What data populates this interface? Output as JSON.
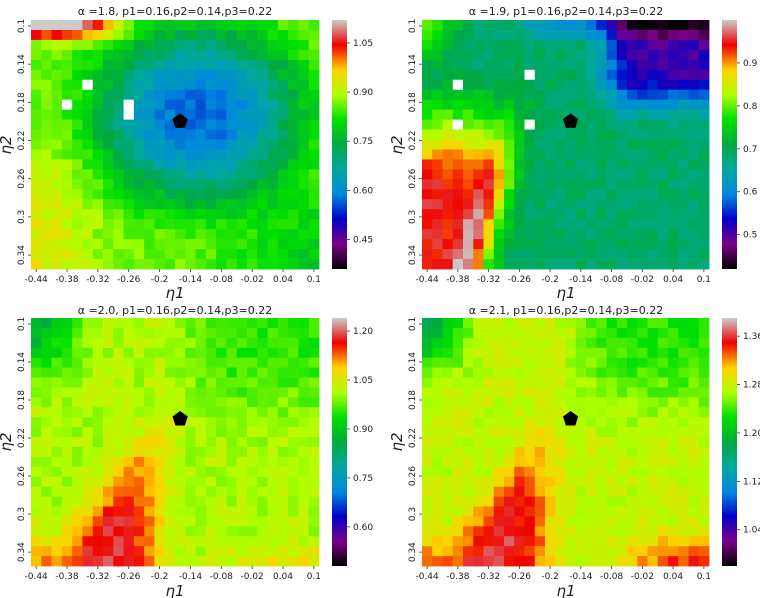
{
  "chart_data": [
    {
      "type": "heatmap",
      "title": "α =1.8, p1=0.16,p2=0.14,p3=0.22",
      "xlabel": "η1",
      "ylabel": "η2",
      "x_ticks": [
        "-0.44",
        "-0.38",
        "-0.32",
        "-0.26",
        "-0.2",
        "-0.14",
        "-0.08",
        "-0.02",
        "0.04",
        "0.1"
      ],
      "y_ticks": [
        "0.1",
        "0.14",
        "0.18",
        "0.22",
        "0.26",
        "0.3",
        "0.34"
      ],
      "grid": [
        28,
        25
      ],
      "x_range": [
        -0.44,
        0.1
      ],
      "y_range": [
        0.1,
        0.34
      ],
      "colorbar_ticks": [
        "1.05",
        "0.90",
        "0.75",
        "0.60",
        "0.45"
      ],
      "value_range": [
        0.36,
        1.12
      ],
      "marker": {
        "shape": "pentagon",
        "x": -0.16,
        "y": 0.2
      },
      "colormap": "nipy_spectral"
    },
    {
      "type": "heatmap",
      "title": "α =1.9, p1=0.16,p2=0.14,p3=0.22",
      "xlabel": "η1",
      "ylabel": "η2",
      "x_ticks": [
        "-0.44",
        "-0.38",
        "-0.32",
        "-0.26",
        "-0.2",
        "-0.14",
        "-0.08",
        "-0.02",
        "0.04",
        "0.1"
      ],
      "y_ticks": [
        "0.1",
        "0.14",
        "0.18",
        "0.22",
        "0.26",
        "0.3",
        "0.34"
      ],
      "grid": [
        28,
        25
      ],
      "x_range": [
        -0.44,
        0.1
      ],
      "y_range": [
        0.1,
        0.34
      ],
      "colorbar_ticks": [
        "0.9",
        "0.8",
        "0.7",
        "0.6",
        "0.5"
      ],
      "value_range": [
        0.42,
        1.0
      ],
      "marker": {
        "shape": "pentagon",
        "x": -0.16,
        "y": 0.2
      },
      "colormap": "nipy_spectral"
    },
    {
      "type": "heatmap",
      "title": "α =2.0, p1=0.16,p2=0.14,p3=0.22",
      "xlabel": "η1",
      "ylabel": "η2",
      "x_ticks": [
        "-0.44",
        "-0.38",
        "-0.32",
        "-0.26",
        "-0.2",
        "-0.14",
        "-0.08",
        "-0.02",
        "0.04",
        "0.1"
      ],
      "y_ticks": [
        "0.1",
        "0.14",
        "0.18",
        "0.22",
        "0.26",
        "0.3",
        "0.34"
      ],
      "grid": [
        28,
        25
      ],
      "x_range": [
        -0.44,
        0.1
      ],
      "y_range": [
        0.1,
        0.34
      ],
      "colorbar_ticks": [
        "1.20",
        "1.05",
        "0.90",
        "0.75",
        "0.60"
      ],
      "value_range": [
        0.48,
        1.24
      ],
      "marker": {
        "shape": "pentagon",
        "x": -0.16,
        "y": 0.2
      },
      "colormap": "nipy_spectral"
    },
    {
      "type": "heatmap",
      "title": "α =2.1, p1=0.16,p2=0.14,p3=0.22",
      "xlabel": "η1",
      "ylabel": "η2",
      "x_ticks": [
        "-0.44",
        "-0.38",
        "-0.32",
        "-0.26",
        "-0.2",
        "-0.14",
        "-0.08",
        "-0.02",
        "0.04",
        "0.1"
      ],
      "y_ticks": [
        "0.1",
        "0.14",
        "0.18",
        "0.22",
        "0.26",
        "0.3",
        "0.34"
      ],
      "grid": [
        28,
        25
      ],
      "x_range": [
        -0.44,
        0.1
      ],
      "y_range": [
        0.1,
        0.34
      ],
      "colorbar_ticks": [
        "1.36",
        "1.28",
        "1.20",
        "1.12",
        "1.04"
      ],
      "value_range": [
        0.98,
        1.39
      ],
      "marker": {
        "shape": "pentagon",
        "x": -0.16,
        "y": 0.2
      },
      "colormap": "nipy_spectral"
    }
  ]
}
